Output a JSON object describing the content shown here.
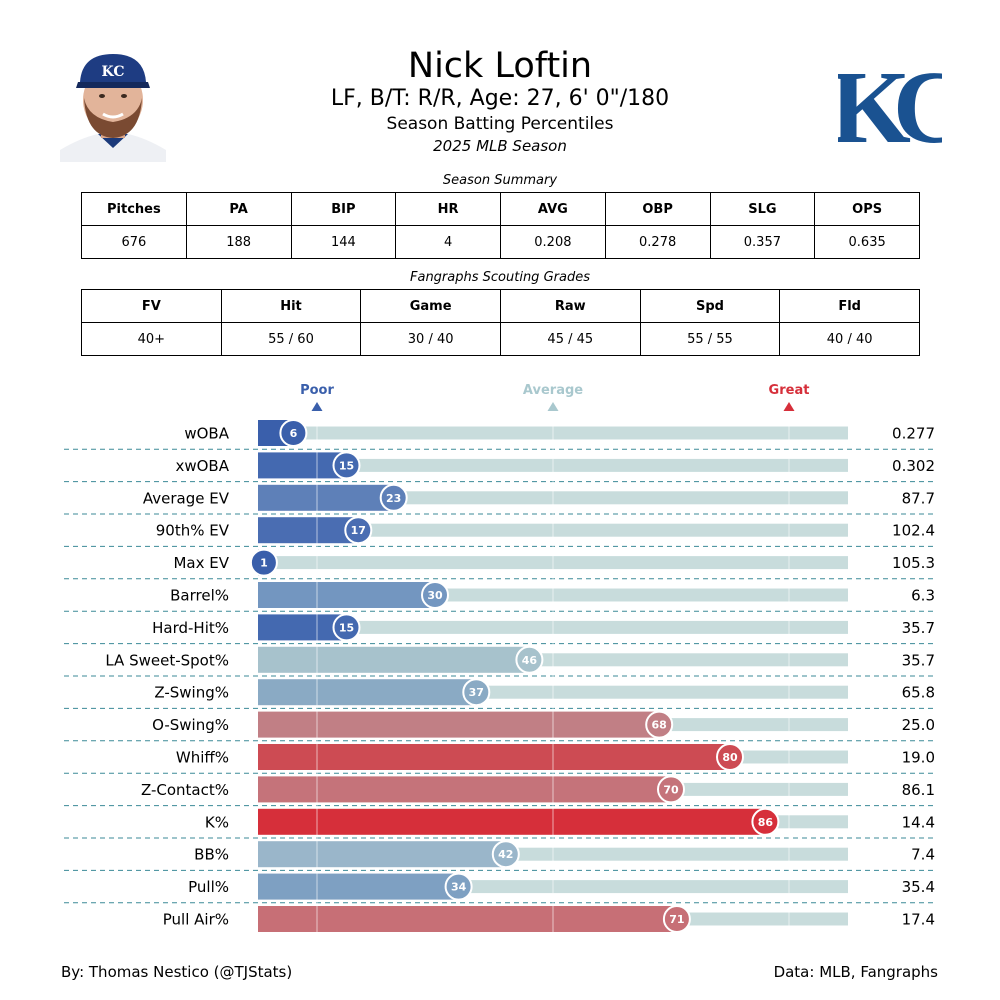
{
  "header": {
    "name": "Nick Loftin",
    "bio": "LF, B/T: R/R, Age: 27, 6' 0\"/180",
    "subtitle": "Season Batting Percentiles",
    "season": "2025 MLB Season",
    "team_logo_text": "KC",
    "cap_logo_text": "KC"
  },
  "summary": {
    "title": "Season Summary",
    "headers": [
      "Pitches",
      "PA",
      "BIP",
      "HR",
      "AVG",
      "OBP",
      "SLG",
      "OPS"
    ],
    "values": [
      "676",
      "188",
      "144",
      "4",
      "0.208",
      "0.278",
      "0.357",
      "0.635"
    ]
  },
  "scouting": {
    "title": "Fangraphs Scouting Grades",
    "headers": [
      "FV",
      "Hit",
      "Game",
      "Raw",
      "Spd",
      "Fld"
    ],
    "values": [
      "40+",
      "55 / 60",
      "30 / 40",
      "45 / 45",
      "55 / 55",
      "40 / 40"
    ]
  },
  "legend": {
    "poor": "Poor",
    "average": "Average",
    "great": "Great",
    "poor_color": "#3a5fab",
    "average_color": "#a9c8ce",
    "great_color": "#d62f3a"
  },
  "chart_data": {
    "type": "bar",
    "orientation": "horizontal",
    "xlim": [
      0,
      100
    ],
    "reference_lines": [
      10,
      50,
      90
    ],
    "track_color": "#c8dcdc",
    "categories": [
      "wOBA",
      "xwOBA",
      "Average EV",
      "90th% EV",
      "Max EV",
      "Barrel%",
      "Hard-Hit%",
      "LA Sweet-Spot%",
      "Z-Swing%",
      "O-Swing%",
      "Whiff%",
      "Z-Contact%",
      "K%",
      "BB%",
      "Pull%",
      "Pull Air%"
    ],
    "percentiles": [
      6,
      15,
      23,
      17,
      1,
      30,
      15,
      46,
      37,
      68,
      80,
      70,
      86,
      42,
      34,
      71
    ],
    "stat_values": [
      "0.277",
      "0.302",
      "87.7",
      "102.4",
      "105.3",
      "6.3",
      "35.7",
      "35.7",
      "65.8",
      "25.0",
      "19.0",
      "86.1",
      "14.4",
      "7.4",
      "35.4",
      "17.4"
    ],
    "colors": [
      "#3a5fab",
      "#4469b0",
      "#5e80b8",
      "#4a6db2",
      "#3a5fab",
      "#7396c0",
      "#4469b0",
      "#a7c2cc",
      "#8aaac4",
      "#c17f85",
      "#cd4b53",
      "#c5737a",
      "#d62f3a",
      "#9ab6ca",
      "#7ea0c2",
      "#c76f76"
    ]
  },
  "footer": {
    "credit": "By: Thomas Nestico (@TJStats)",
    "source": "Data: MLB, Fangraphs"
  }
}
